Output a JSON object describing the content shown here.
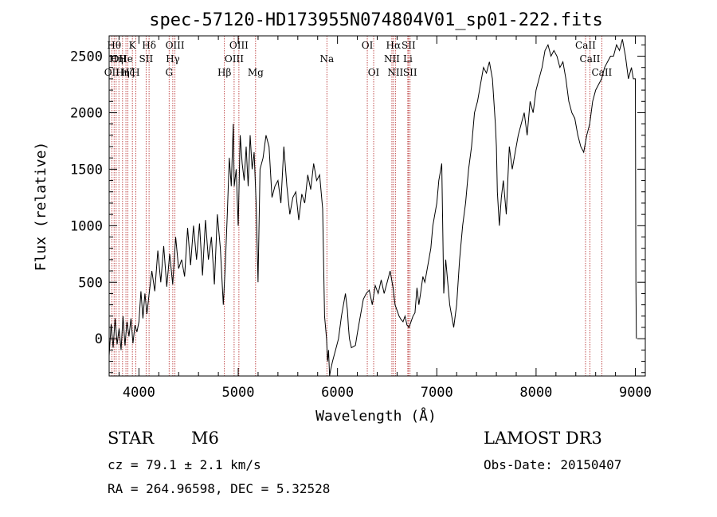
{
  "chart_data": {
    "type": "line",
    "title": "spec-57120-HD173955N074804V01_sp01-222.fits",
    "xlabel": "Wavelength (Å)",
    "ylabel": "Flux (relative)",
    "xlim": [
      3700,
      9100
    ],
    "ylim": [
      -330,
      2680
    ],
    "xticks": [
      4000,
      5000,
      6000,
      7000,
      8000,
      9000
    ],
    "yticks": [
      0,
      500,
      1000,
      1500,
      2000,
      2500
    ],
    "grid": false,
    "series": [
      {
        "x": [
          3700,
          3720,
          3740,
          3760,
          3780,
          3800,
          3820,
          3840,
          3860,
          3880,
          3900,
          3920,
          3940,
          3960,
          3980,
          4000,
          4020,
          4040,
          4060,
          4080,
          4100,
          4130,
          4160,
          4190,
          4220,
          4250,
          4280,
          4310,
          4340,
          4370,
          4400,
          4430,
          4460,
          4490,
          4520,
          4550,
          4580,
          4610,
          4640,
          4670,
          4700,
          4730,
          4760,
          4790,
          4820,
          4850,
          4870,
          4890,
          4910,
          4930,
          4950,
          4960,
          4980,
          5000,
          5020,
          5040,
          5060,
          5080,
          5100,
          5120,
          5140,
          5160,
          5180,
          5200,
          5220,
          5250,
          5280,
          5310,
          5340,
          5370,
          5400,
          5430,
          5460,
          5490,
          5520,
          5550,
          5580,
          5610,
          5640,
          5670,
          5700,
          5730,
          5760,
          5790,
          5820,
          5850,
          5870,
          5890,
          5900,
          5910,
          5920,
          5930,
          5950,
          5980,
          6010,
          6040,
          6060,
          6080,
          6100,
          6110,
          6120,
          6140,
          6160,
          6180,
          6200,
          6230,
          6260,
          6290,
          6320,
          6350,
          6380,
          6410,
          6440,
          6470,
          6500,
          6530,
          6560,
          6580,
          6600,
          6620,
          6640,
          6660,
          6680,
          6700,
          6720,
          6740,
          6760,
          6780,
          6800,
          6820,
          6840,
          6860,
          6880,
          6900,
          6920,
          6940,
          6960,
          6980,
          7000,
          7020,
          7040,
          7050,
          7070,
          7090,
          7110,
          7130,
          7150,
          7170,
          7200,
          7230,
          7260,
          7290,
          7320,
          7350,
          7380,
          7410,
          7440,
          7470,
          7500,
          7530,
          7560,
          7590,
          7600,
          7610,
          7630,
          7650,
          7670,
          7700,
          7730,
          7760,
          7790,
          7820,
          7850,
          7880,
          7910,
          7940,
          7970,
          8000,
          8030,
          8060,
          8090,
          8120,
          8150,
          8180,
          8210,
          8240,
          8270,
          8300,
          8330,
          8360,
          8390,
          8420,
          8450,
          8480,
          8510,
          8540,
          8570,
          8600,
          8630,
          8660,
          8690,
          8720,
          8750,
          8780,
          8810,
          8840,
          8870,
          8900,
          8930,
          8960,
          8980,
          9000,
          9005,
          9010
        ],
        "y": [
          -150,
          130,
          -80,
          180,
          -50,
          90,
          -100,
          200,
          -60,
          150,
          20,
          180,
          -40,
          120,
          60,
          150,
          420,
          180,
          400,
          220,
          380,
          600,
          420,
          780,
          500,
          820,
          460,
          750,
          480,
          900,
          620,
          700,
          550,
          980,
          650,
          1000,
          700,
          1020,
          560,
          1050,
          700,
          900,
          480,
          1100,
          800,
          300,
          650,
          1100,
          1600,
          1350,
          1900,
          1350,
          1500,
          1000,
          1800,
          1550,
          1400,
          1700,
          1350,
          1800,
          1500,
          1650,
          1200,
          500,
          1500,
          1600,
          1800,
          1700,
          1250,
          1350,
          1400,
          1200,
          1700,
          1350,
          1100,
          1250,
          1300,
          1050,
          1280,
          1200,
          1450,
          1320,
          1550,
          1400,
          1450,
          1150,
          200,
          0,
          -200,
          -100,
          -330,
          -280,
          -200,
          -100,
          0,
          200,
          300,
          400,
          250,
          100,
          0,
          -80,
          -70,
          -60,
          50,
          200,
          350,
          400,
          430,
          300,
          470,
          400,
          520,
          400,
          500,
          600,
          450,
          300,
          250,
          200,
          170,
          150,
          200,
          120,
          100,
          150,
          200,
          230,
          450,
          300,
          420,
          550,
          500,
          600,
          700,
          800,
          1000,
          1100,
          1200,
          1400,
          1500,
          1550,
          400,
          700,
          500,
          300,
          200,
          100,
          300,
          700,
          1000,
          1200,
          1500,
          1700,
          2000,
          2100,
          2250,
          2400,
          2350,
          2450,
          2300,
          1900,
          1700,
          1300,
          1000,
          1250,
          1400,
          1100,
          1700,
          1500,
          1650,
          1800,
          1900,
          2000,
          1800,
          2100,
          2000,
          2200,
          2300,
          2400,
          2550,
          2600,
          2500,
          2550,
          2500,
          2400,
          2450,
          2300,
          2100,
          2000,
          1950,
          1800,
          1700,
          1650,
          1800,
          1900,
          2100,
          2200,
          2250,
          2300,
          2400,
          2450,
          2500,
          2500,
          2600,
          2550,
          2650,
          2500,
          2300,
          2400,
          2300,
          2300,
          500,
          0
        ]
      }
    ],
    "line_markers": [
      {
        "wl": 3727,
        "label": "OII",
        "row": 3
      },
      {
        "wl": 3750,
        "label": "Hθ",
        "row": 1
      },
      {
        "wl": 3771,
        "label": "Hη",
        "row": 2
      },
      {
        "wl": 3798,
        "label": "OII",
        "row": 2
      },
      {
        "wl": 3835,
        "label": "Hη",
        "row": 3
      },
      {
        "wl": 3869,
        "label": "He",
        "row": 2
      },
      {
        "wl": 3889,
        "label": "Hζ",
        "row": 3
      },
      {
        "wl": 3934,
        "label": "K",
        "row": 1
      },
      {
        "wl": 3968,
        "label": "H",
        "row": 3
      },
      {
        "wl": 4072,
        "label": "SII",
        "row": 2
      },
      {
        "wl": 4102,
        "label": "Hδ",
        "row": 1
      },
      {
        "wl": 4304,
        "label": "G",
        "row": 3
      },
      {
        "wl": 4341,
        "label": "Hγ",
        "row": 2
      },
      {
        "wl": 4363,
        "label": "OIII",
        "row": 1
      },
      {
        "wl": 4861,
        "label": "Hβ",
        "row": 3
      },
      {
        "wl": 4959,
        "label": "OIII",
        "row": 2
      },
      {
        "wl": 5007,
        "label": "OIII",
        "row": 1
      },
      {
        "wl": 5175,
        "label": "Mg",
        "row": 3
      },
      {
        "wl": 5893,
        "label": "Na",
        "row": 2
      },
      {
        "wl": 6300,
        "label": "OI",
        "row": 1
      },
      {
        "wl": 6364,
        "label": "OI",
        "row": 3
      },
      {
        "wl": 6548,
        "label": "NII",
        "row": 2
      },
      {
        "wl": 6563,
        "label": "Hα",
        "row": 1
      },
      {
        "wl": 6583,
        "label": "NII",
        "row": 3
      },
      {
        "wl": 6708,
        "label": "Li",
        "row": 2
      },
      {
        "wl": 6716,
        "label": "SII",
        "row": 1
      },
      {
        "wl": 6731,
        "label": "SII",
        "row": 3
      },
      {
        "wl": 8498,
        "label": "CaII",
        "row": 1
      },
      {
        "wl": 8542,
        "label": "CaII",
        "row": 2
      },
      {
        "wl": 8662,
        "label": "CaII",
        "row": 3
      }
    ]
  },
  "info": {
    "class_label": "STAR",
    "subclass": "M6",
    "survey": "LAMOST DR3",
    "cz": "cz = 79.1 ± 2.1 km/s",
    "obs_date": "Obs-Date: 20150407",
    "coords": "RA = 264.96598, DEC =   5.32528"
  }
}
